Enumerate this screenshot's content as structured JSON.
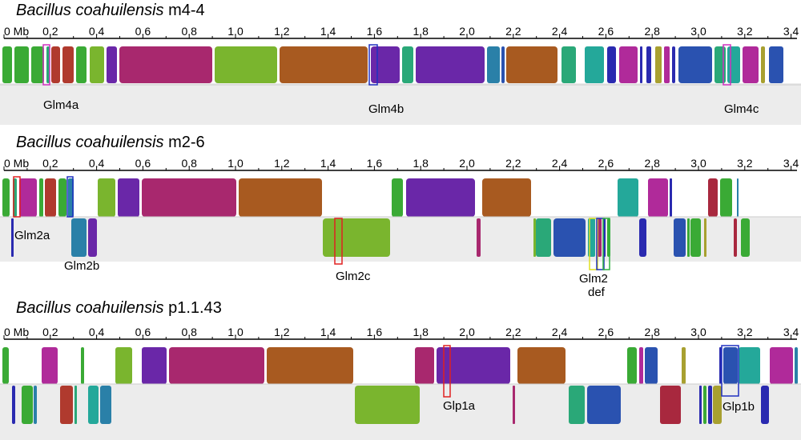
{
  "axis": {
    "zero_label": "0 Mb",
    "ticks": [
      "0.2",
      "0.4",
      "0.6",
      "0.8",
      "1.0",
      "1.2",
      "1.4",
      "1.6",
      "1.8",
      "2.0",
      "2.2",
      "2.4",
      "2.6",
      "2.8",
      "3.0",
      "3.2",
      "3.4"
    ]
  },
  "genomes": [
    {
      "species": "Bacillus coahuilensis",
      "strain": "m4-4",
      "regions": [
        {
          "label": "Glm4a"
        },
        {
          "label": "Glm4b"
        },
        {
          "label": "Glm4c"
        }
      ]
    },
    {
      "species": "Bacillus coahuilensis",
      "strain": "m2-6",
      "regions": [
        {
          "label": "Glm2a"
        },
        {
          "label": "Glm2b"
        },
        {
          "label": "Glm2c"
        },
        {
          "label": "Glm2",
          "label2": "def"
        }
      ]
    },
    {
      "species": "Bacillus coahuilensis",
      "strain": "p1.1.43",
      "regions": [
        {
          "label": "Glp1a"
        },
        {
          "label": "Glp1b"
        }
      ]
    }
  ],
  "colors": {
    "green": "#3aaa35",
    "lime": "#7ab52e",
    "magenta": "#a8286e",
    "orange": "#a85a20",
    "purple": "#6a27a8",
    "teal": "#24a89a",
    "blue": "#2a52b0",
    "darkblue": "#2a2ab0",
    "red": "#b03a2e",
    "pink": "#b02a9a",
    "olive": "#a8a030",
    "crimson": "#a8283e",
    "sea": "#2aa878",
    "steel": "#2a80a8"
  }
}
